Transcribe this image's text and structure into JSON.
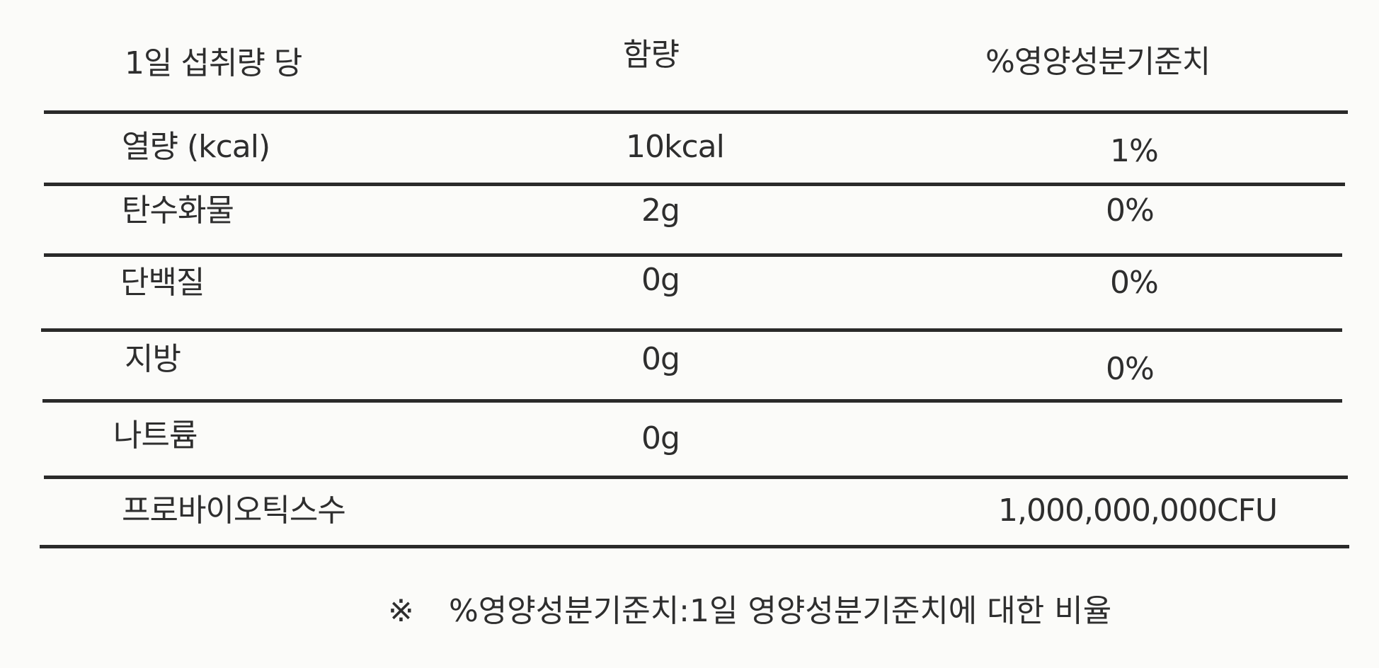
{
  "headers": {
    "serving": "1일 섭취량 당",
    "amount": "함량",
    "dv": "%영양성분기준치"
  },
  "rows": [
    {
      "name": "열량 (kcal)",
      "amount": "10kcal",
      "dv": "1%"
    },
    {
      "name": "탄수화물",
      "amount": "2g",
      "dv": "0%"
    },
    {
      "name": "단백질",
      "amount": "0g",
      "dv": "0%"
    },
    {
      "name": "지방",
      "amount": "0g",
      "dv": "0%"
    },
    {
      "name": "나트륨",
      "amount": "0g",
      "dv": ""
    },
    {
      "name": "프로바이오틱스수",
      "amount": "",
      "dv": "1,000,000,000CFU"
    }
  ],
  "footnote": {
    "mark": "※",
    "text": "%영양성분기준치:1일 영양성분기준치에 대한 비율"
  }
}
